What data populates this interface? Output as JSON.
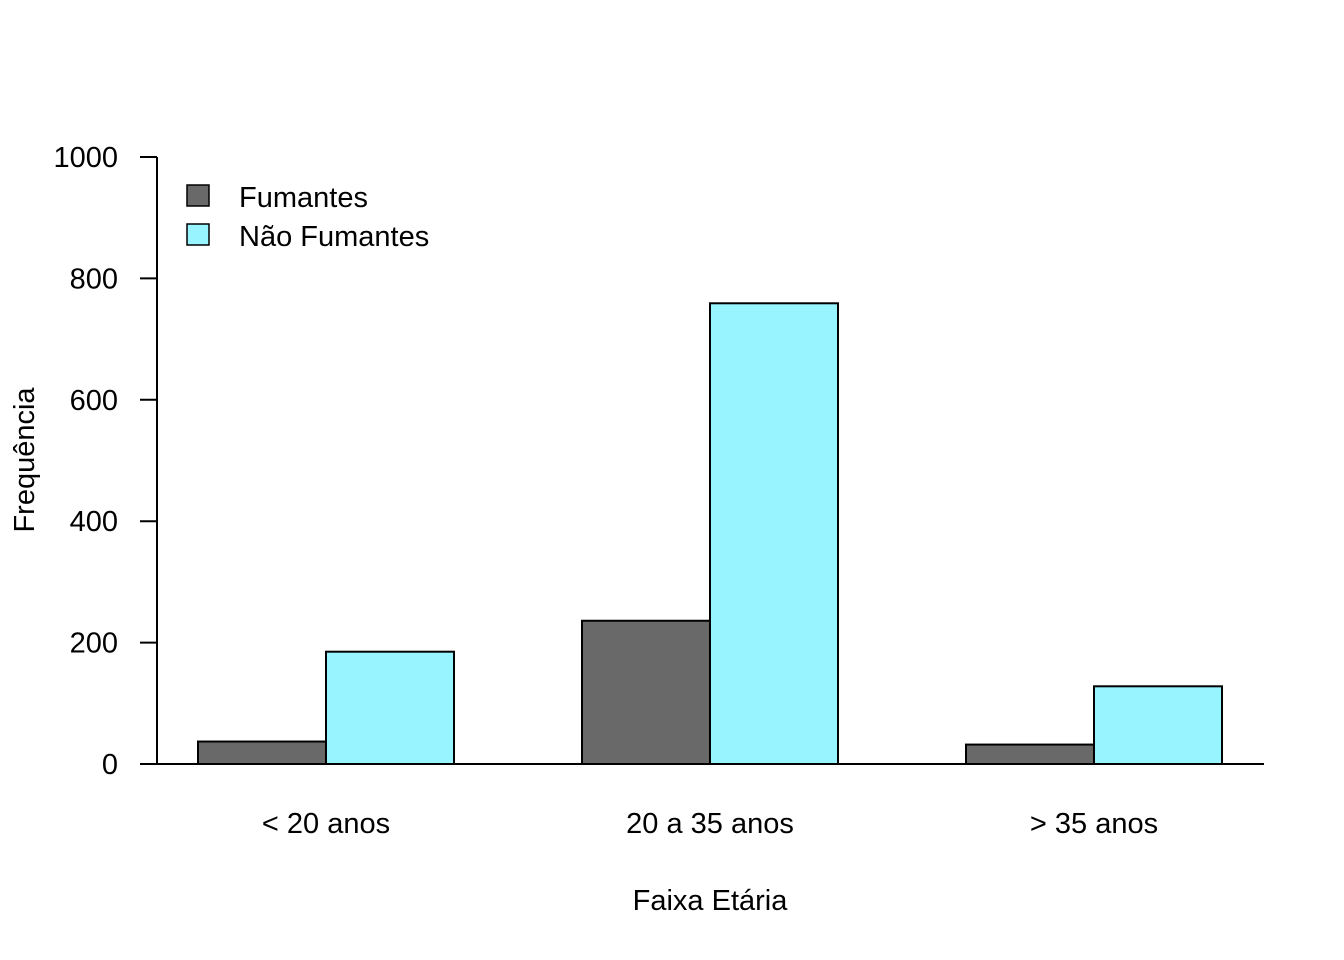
{
  "chart_data": {
    "type": "bar",
    "title": "",
    "xlabel": "Faixa Etária",
    "ylabel": "Frequência",
    "categories": [
      "< 20 anos",
      "20 a 35 anos",
      "> 35 anos"
    ],
    "series": [
      {
        "name": "Fumantes",
        "values": [
          37,
          236,
          32
        ],
        "color": "#696969"
      },
      {
        "name": "Não Fumantes",
        "values": [
          185,
          759,
          128
        ],
        "color": "#98F5FF"
      }
    ],
    "ylim": [
      0,
      1000
    ],
    "yticks": [
      0,
      200,
      400,
      600,
      800,
      1000
    ],
    "grid": false,
    "legend_position": "top-left"
  }
}
